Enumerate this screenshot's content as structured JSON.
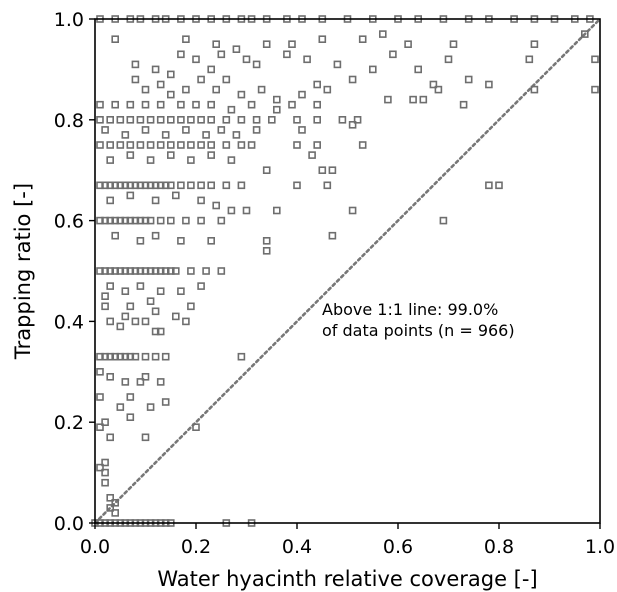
{
  "chart_data": {
    "type": "scatter",
    "xlabel": "Water hyacinth relative coverage [-]",
    "ylabel": "Trapping ratio [-]",
    "xlim": [
      0,
      1
    ],
    "ylim": [
      0,
      1
    ],
    "x_ticks": [
      "0.0",
      "0.2",
      "0.4",
      "0.6",
      "0.8",
      "1.0"
    ],
    "y_ticks": [
      "0.0",
      "0.2",
      "0.4",
      "0.6",
      "0.8",
      "1.0"
    ],
    "grid": false,
    "annotation": {
      "line1": "Above 1:1 line: 99.0%",
      "line2": "of data points (n = 966)"
    },
    "reference_line": {
      "type": "1:1",
      "style": "dotted",
      "x": [
        0,
        1
      ],
      "y": [
        0,
        1
      ]
    },
    "marker": {
      "shape": "open-square",
      "color": "#6e6e6e"
    },
    "points": [
      [
        0.01,
        1.0
      ],
      [
        0.04,
        1.0
      ],
      [
        0.07,
        1.0
      ],
      [
        0.09,
        1.0
      ],
      [
        0.12,
        1.0
      ],
      [
        0.14,
        1.0
      ],
      [
        0.17,
        1.0
      ],
      [
        0.2,
        1.0
      ],
      [
        0.23,
        1.0
      ],
      [
        0.26,
        1.0
      ],
      [
        0.29,
        1.0
      ],
      [
        0.31,
        1.0
      ],
      [
        0.34,
        1.0
      ],
      [
        0.38,
        1.0
      ],
      [
        0.41,
        1.0
      ],
      [
        0.45,
        1.0
      ],
      [
        0.5,
        1.0
      ],
      [
        0.55,
        1.0
      ],
      [
        0.6,
        1.0
      ],
      [
        0.64,
        1.0
      ],
      [
        0.69,
        1.0
      ],
      [
        0.74,
        1.0
      ],
      [
        0.78,
        1.0
      ],
      [
        0.83,
        1.0
      ],
      [
        0.87,
        1.0
      ],
      [
        0.91,
        1.0
      ],
      [
        0.95,
        1.0
      ],
      [
        0.98,
        1.0
      ],
      [
        0.04,
        0.96
      ],
      [
        0.18,
        0.96
      ],
      [
        0.24,
        0.95
      ],
      [
        0.28,
        0.94
      ],
      [
        0.34,
        0.95
      ],
      [
        0.39,
        0.95
      ],
      [
        0.45,
        0.96
      ],
      [
        0.53,
        0.96
      ],
      [
        0.57,
        0.97
      ],
      [
        0.62,
        0.95
      ],
      [
        0.71,
        0.95
      ],
      [
        0.87,
        0.95
      ],
      [
        0.97,
        0.97
      ],
      [
        0.08,
        0.91
      ],
      [
        0.12,
        0.9
      ],
      [
        0.15,
        0.89
      ],
      [
        0.17,
        0.93
      ],
      [
        0.2,
        0.92
      ],
      [
        0.23,
        0.9
      ],
      [
        0.25,
        0.93
      ],
      [
        0.3,
        0.92
      ],
      [
        0.32,
        0.91
      ],
      [
        0.38,
        0.93
      ],
      [
        0.42,
        0.92
      ],
      [
        0.48,
        0.91
      ],
      [
        0.51,
        0.88
      ],
      [
        0.55,
        0.9
      ],
      [
        0.59,
        0.93
      ],
      [
        0.64,
        0.9
      ],
      [
        0.67,
        0.87
      ],
      [
        0.7,
        0.92
      ],
      [
        0.74,
        0.88
      ],
      [
        0.86,
        0.92
      ],
      [
        0.99,
        0.92
      ],
      [
        0.08,
        0.88
      ],
      [
        0.1,
        0.86
      ],
      [
        0.13,
        0.87
      ],
      [
        0.15,
        0.85
      ],
      [
        0.18,
        0.86
      ],
      [
        0.21,
        0.88
      ],
      [
        0.24,
        0.86
      ],
      [
        0.26,
        0.88
      ],
      [
        0.29,
        0.85
      ],
      [
        0.33,
        0.86
      ],
      [
        0.36,
        0.84
      ],
      [
        0.41,
        0.85
      ],
      [
        0.44,
        0.87
      ],
      [
        0.46,
        0.86
      ],
      [
        0.58,
        0.84
      ],
      [
        0.63,
        0.84
      ],
      [
        0.68,
        0.86
      ],
      [
        0.78,
        0.87
      ],
      [
        0.87,
        0.86
      ],
      [
        0.99,
        0.86
      ],
      [
        0.01,
        0.83
      ],
      [
        0.04,
        0.83
      ],
      [
        0.07,
        0.83
      ],
      [
        0.1,
        0.83
      ],
      [
        0.13,
        0.83
      ],
      [
        0.17,
        0.83
      ],
      [
        0.2,
        0.83
      ],
      [
        0.23,
        0.83
      ],
      [
        0.27,
        0.82
      ],
      [
        0.31,
        0.83
      ],
      [
        0.36,
        0.82
      ],
      [
        0.39,
        0.83
      ],
      [
        0.44,
        0.83
      ],
      [
        0.52,
        0.8
      ],
      [
        0.65,
        0.84
      ],
      [
        0.73,
        0.83
      ],
      [
        0.01,
        0.8
      ],
      [
        0.03,
        0.8
      ],
      [
        0.05,
        0.8
      ],
      [
        0.07,
        0.8
      ],
      [
        0.09,
        0.8
      ],
      [
        0.11,
        0.8
      ],
      [
        0.13,
        0.8
      ],
      [
        0.15,
        0.8
      ],
      [
        0.17,
        0.8
      ],
      [
        0.19,
        0.8
      ],
      [
        0.21,
        0.8
      ],
      [
        0.23,
        0.8
      ],
      [
        0.26,
        0.8
      ],
      [
        0.29,
        0.8
      ],
      [
        0.32,
        0.8
      ],
      [
        0.35,
        0.8
      ],
      [
        0.4,
        0.8
      ],
      [
        0.44,
        0.8
      ],
      [
        0.49,
        0.8
      ],
      [
        0.51,
        0.79
      ],
      [
        0.02,
        0.78
      ],
      [
        0.06,
        0.77
      ],
      [
        0.1,
        0.78
      ],
      [
        0.14,
        0.77
      ],
      [
        0.18,
        0.78
      ],
      [
        0.22,
        0.77
      ],
      [
        0.25,
        0.78
      ],
      [
        0.28,
        0.77
      ],
      [
        0.32,
        0.78
      ],
      [
        0.41,
        0.78
      ],
      [
        0.01,
        0.75
      ],
      [
        0.03,
        0.75
      ],
      [
        0.05,
        0.75
      ],
      [
        0.07,
        0.75
      ],
      [
        0.09,
        0.75
      ],
      [
        0.11,
        0.75
      ],
      [
        0.13,
        0.75
      ],
      [
        0.15,
        0.75
      ],
      [
        0.17,
        0.75
      ],
      [
        0.19,
        0.75
      ],
      [
        0.21,
        0.75
      ],
      [
        0.23,
        0.75
      ],
      [
        0.26,
        0.75
      ],
      [
        0.29,
        0.75
      ],
      [
        0.31,
        0.75
      ],
      [
        0.4,
        0.75
      ],
      [
        0.44,
        0.75
      ],
      [
        0.53,
        0.75
      ],
      [
        0.03,
        0.72
      ],
      [
        0.07,
        0.73
      ],
      [
        0.11,
        0.72
      ],
      [
        0.15,
        0.73
      ],
      [
        0.19,
        0.72
      ],
      [
        0.23,
        0.73
      ],
      [
        0.27,
        0.72
      ],
      [
        0.34,
        0.7
      ],
      [
        0.43,
        0.73
      ],
      [
        0.45,
        0.7
      ],
      [
        0.47,
        0.7
      ],
      [
        0.01,
        0.67
      ],
      [
        0.02,
        0.67
      ],
      [
        0.03,
        0.67
      ],
      [
        0.04,
        0.67
      ],
      [
        0.05,
        0.67
      ],
      [
        0.06,
        0.67
      ],
      [
        0.07,
        0.67
      ],
      [
        0.08,
        0.67
      ],
      [
        0.09,
        0.67
      ],
      [
        0.1,
        0.67
      ],
      [
        0.11,
        0.67
      ],
      [
        0.12,
        0.67
      ],
      [
        0.13,
        0.67
      ],
      [
        0.14,
        0.67
      ],
      [
        0.15,
        0.67
      ],
      [
        0.17,
        0.67
      ],
      [
        0.19,
        0.67
      ],
      [
        0.21,
        0.67
      ],
      [
        0.23,
        0.67
      ],
      [
        0.26,
        0.67
      ],
      [
        0.29,
        0.67
      ],
      [
        0.4,
        0.67
      ],
      [
        0.46,
        0.67
      ],
      [
        0.78,
        0.67
      ],
      [
        0.8,
        0.67
      ],
      [
        0.03,
        0.64
      ],
      [
        0.07,
        0.65
      ],
      [
        0.12,
        0.64
      ],
      [
        0.16,
        0.65
      ],
      [
        0.21,
        0.64
      ],
      [
        0.24,
        0.63
      ],
      [
        0.27,
        0.62
      ],
      [
        0.3,
        0.62
      ],
      [
        0.36,
        0.62
      ],
      [
        0.51,
        0.62
      ],
      [
        0.69,
        0.6
      ],
      [
        0.01,
        0.6
      ],
      [
        0.02,
        0.6
      ],
      [
        0.03,
        0.6
      ],
      [
        0.04,
        0.6
      ],
      [
        0.05,
        0.6
      ],
      [
        0.06,
        0.6
      ],
      [
        0.07,
        0.6
      ],
      [
        0.08,
        0.6
      ],
      [
        0.09,
        0.6
      ],
      [
        0.1,
        0.6
      ],
      [
        0.11,
        0.6
      ],
      [
        0.13,
        0.6
      ],
      [
        0.15,
        0.6
      ],
      [
        0.18,
        0.6
      ],
      [
        0.21,
        0.6
      ],
      [
        0.25,
        0.6
      ],
      [
        0.04,
        0.57
      ],
      [
        0.09,
        0.56
      ],
      [
        0.12,
        0.57
      ],
      [
        0.17,
        0.56
      ],
      [
        0.23,
        0.56
      ],
      [
        0.34,
        0.56
      ],
      [
        0.34,
        0.54
      ],
      [
        0.47,
        0.57
      ],
      [
        0.01,
        0.5
      ],
      [
        0.02,
        0.5
      ],
      [
        0.03,
        0.5
      ],
      [
        0.04,
        0.5
      ],
      [
        0.05,
        0.5
      ],
      [
        0.06,
        0.5
      ],
      [
        0.07,
        0.5
      ],
      [
        0.08,
        0.5
      ],
      [
        0.09,
        0.5
      ],
      [
        0.1,
        0.5
      ],
      [
        0.11,
        0.5
      ],
      [
        0.12,
        0.5
      ],
      [
        0.13,
        0.5
      ],
      [
        0.14,
        0.5
      ],
      [
        0.15,
        0.5
      ],
      [
        0.16,
        0.5
      ],
      [
        0.19,
        0.5
      ],
      [
        0.22,
        0.5
      ],
      [
        0.25,
        0.5
      ],
      [
        0.03,
        0.47
      ],
      [
        0.06,
        0.46
      ],
      [
        0.09,
        0.47
      ],
      [
        0.13,
        0.46
      ],
      [
        0.17,
        0.46
      ],
      [
        0.21,
        0.47
      ],
      [
        0.02,
        0.45
      ],
      [
        0.02,
        0.43
      ],
      [
        0.07,
        0.43
      ],
      [
        0.12,
        0.42
      ],
      [
        0.16,
        0.41
      ],
      [
        0.19,
        0.43
      ],
      [
        0.11,
        0.44
      ],
      [
        0.03,
        0.4
      ],
      [
        0.05,
        0.39
      ],
      [
        0.06,
        0.41
      ],
      [
        0.08,
        0.4
      ],
      [
        0.1,
        0.4
      ],
      [
        0.12,
        0.38
      ],
      [
        0.13,
        0.38
      ],
      [
        0.18,
        0.4
      ],
      [
        0.01,
        0.33
      ],
      [
        0.02,
        0.33
      ],
      [
        0.03,
        0.33
      ],
      [
        0.04,
        0.33
      ],
      [
        0.05,
        0.33
      ],
      [
        0.06,
        0.33
      ],
      [
        0.07,
        0.33
      ],
      [
        0.08,
        0.33
      ],
      [
        0.1,
        0.33
      ],
      [
        0.12,
        0.33
      ],
      [
        0.14,
        0.33
      ],
      [
        0.29,
        0.33
      ],
      [
        0.01,
        0.3
      ],
      [
        0.03,
        0.29
      ],
      [
        0.06,
        0.28
      ],
      [
        0.09,
        0.28
      ],
      [
        0.1,
        0.29
      ],
      [
        0.13,
        0.28
      ],
      [
        0.01,
        0.25
      ],
      [
        0.05,
        0.23
      ],
      [
        0.07,
        0.25
      ],
      [
        0.11,
        0.23
      ],
      [
        0.14,
        0.24
      ],
      [
        0.01,
        0.19
      ],
      [
        0.02,
        0.2
      ],
      [
        0.03,
        0.17
      ],
      [
        0.07,
        0.21
      ],
      [
        0.1,
        0.17
      ],
      [
        0.2,
        0.19
      ],
      [
        0.01,
        0.11
      ],
      [
        0.02,
        0.12
      ],
      [
        0.02,
        0.08
      ],
      [
        0.03,
        0.05
      ],
      [
        0.04,
        0.04
      ],
      [
        0.03,
        0.03
      ],
      [
        0.04,
        0.02
      ],
      [
        0.02,
        0.1
      ],
      [
        0.0,
        0.0
      ],
      [
        0.01,
        0.0
      ],
      [
        0.02,
        0.0
      ],
      [
        0.03,
        0.0
      ],
      [
        0.04,
        0.0
      ],
      [
        0.05,
        0.0
      ],
      [
        0.06,
        0.0
      ],
      [
        0.07,
        0.0
      ],
      [
        0.08,
        0.0
      ],
      [
        0.09,
        0.0
      ],
      [
        0.1,
        0.0
      ],
      [
        0.11,
        0.0
      ],
      [
        0.12,
        0.0
      ],
      [
        0.13,
        0.0
      ],
      [
        0.14,
        0.0
      ],
      [
        0.15,
        0.0
      ],
      [
        0.26,
        0.0
      ],
      [
        0.31,
        0.0
      ]
    ]
  }
}
